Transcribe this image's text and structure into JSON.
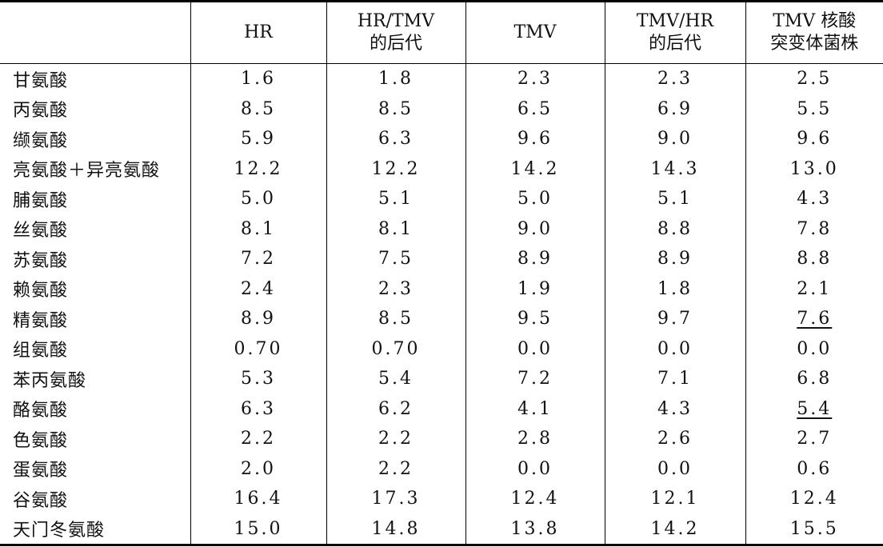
{
  "table": {
    "headers": [
      "",
      "HR",
      "HR/TMV\n的后代",
      "TMV",
      "TMV/HR\n的后代",
      "TMV 核酸\n突变体菌株"
    ],
    "rows": [
      {
        "label": "甘氨酸",
        "values": [
          "1.6",
          "1.8",
          "2.3",
          "2.3",
          "2.5"
        ],
        "underlined": [
          false,
          false,
          false,
          false,
          false
        ]
      },
      {
        "label": "丙氨酸",
        "values": [
          "8.5",
          "8.5",
          "6.5",
          "6.9",
          "5.5"
        ],
        "underlined": [
          false,
          false,
          false,
          false,
          false
        ]
      },
      {
        "label": "缬氨酸",
        "values": [
          "5.9",
          "6.3",
          "9.6",
          "9.0",
          "9.6"
        ],
        "underlined": [
          false,
          false,
          false,
          false,
          false
        ]
      },
      {
        "label": "亮氨酸＋异亮氨酸",
        "values": [
          "12.2",
          "12.2",
          "14.2",
          "14.3",
          "13.0"
        ],
        "underlined": [
          false,
          false,
          false,
          false,
          false
        ]
      },
      {
        "label": "脯氨酸",
        "values": [
          "5.0",
          "5.1",
          "5.0",
          "5.1",
          "4.3"
        ],
        "underlined": [
          false,
          false,
          false,
          false,
          false
        ]
      },
      {
        "label": "丝氨酸",
        "values": [
          "8.1",
          "8.1",
          "9.0",
          "8.8",
          "7.8"
        ],
        "underlined": [
          false,
          false,
          false,
          false,
          false
        ]
      },
      {
        "label": "苏氨酸",
        "values": [
          "7.2",
          "7.5",
          "8.9",
          "8.9",
          "8.8"
        ],
        "underlined": [
          false,
          false,
          false,
          false,
          false
        ]
      },
      {
        "label": "赖氨酸",
        "values": [
          "2.4",
          "2.3",
          "1.9",
          "1.8",
          "2.1"
        ],
        "underlined": [
          false,
          false,
          false,
          false,
          false
        ]
      },
      {
        "label": "精氨酸",
        "values": [
          "8.9",
          "8.5",
          "9.5",
          "9.7",
          "7.6"
        ],
        "underlined": [
          false,
          false,
          false,
          false,
          true
        ]
      },
      {
        "label": "组氨酸",
        "values": [
          "0.70",
          "0.70",
          "0.0",
          "0.0",
          "0.0"
        ],
        "underlined": [
          false,
          false,
          false,
          false,
          false
        ]
      },
      {
        "label": "苯丙氨酸",
        "values": [
          "5.3",
          "5.4",
          "7.2",
          "7.1",
          "6.8"
        ],
        "underlined": [
          false,
          false,
          false,
          false,
          false
        ]
      },
      {
        "label": "酪氨酸",
        "values": [
          "6.3",
          "6.2",
          "4.1",
          "4.3",
          "5.4"
        ],
        "underlined": [
          false,
          false,
          false,
          false,
          true
        ]
      },
      {
        "label": "色氨酸",
        "values": [
          "2.2",
          "2.2",
          "2.8",
          "2.6",
          "2.7"
        ],
        "underlined": [
          false,
          false,
          false,
          false,
          false
        ]
      },
      {
        "label": "蛋氨酸",
        "values": [
          "2.0",
          "2.2",
          "0.0",
          "0.0",
          "0.6"
        ],
        "underlined": [
          false,
          false,
          false,
          false,
          false
        ]
      },
      {
        "label": "谷氨酸",
        "values": [
          "16.4",
          "17.3",
          "12.4",
          "12.1",
          "12.4"
        ],
        "underlined": [
          false,
          false,
          false,
          false,
          false
        ]
      },
      {
        "label": "天门冬氨酸",
        "values": [
          "15.0",
          "14.8",
          "13.8",
          "14.2",
          "15.5"
        ],
        "underlined": [
          false,
          false,
          false,
          false,
          false
        ]
      }
    ]
  }
}
